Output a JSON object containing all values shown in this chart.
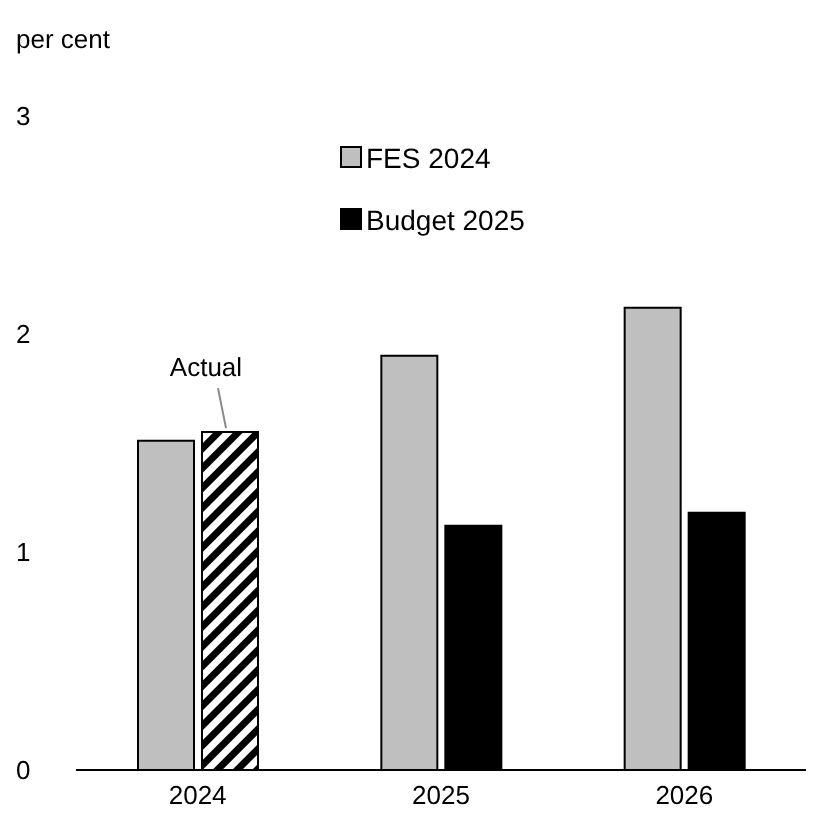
{
  "chart_data": {
    "type": "bar",
    "ylabel": "per cent",
    "categories": [
      "2024",
      "2025",
      "2026"
    ],
    "series": [
      {
        "name": "FES 2024",
        "color": "#bfbfbf",
        "values": [
          1.51,
          1.9,
          2.12
        ]
      },
      {
        "name": "Budget 2025",
        "color": "#000000",
        "values": [
          1.55,
          1.12,
          1.18
        ]
      }
    ],
    "ylim": [
      0,
      3
    ],
    "yticks": [
      0,
      1,
      2,
      3
    ],
    "legend": "top",
    "annotations": [
      {
        "text": "Actual",
        "x": "2024",
        "y": 1.55
      }
    ]
  }
}
